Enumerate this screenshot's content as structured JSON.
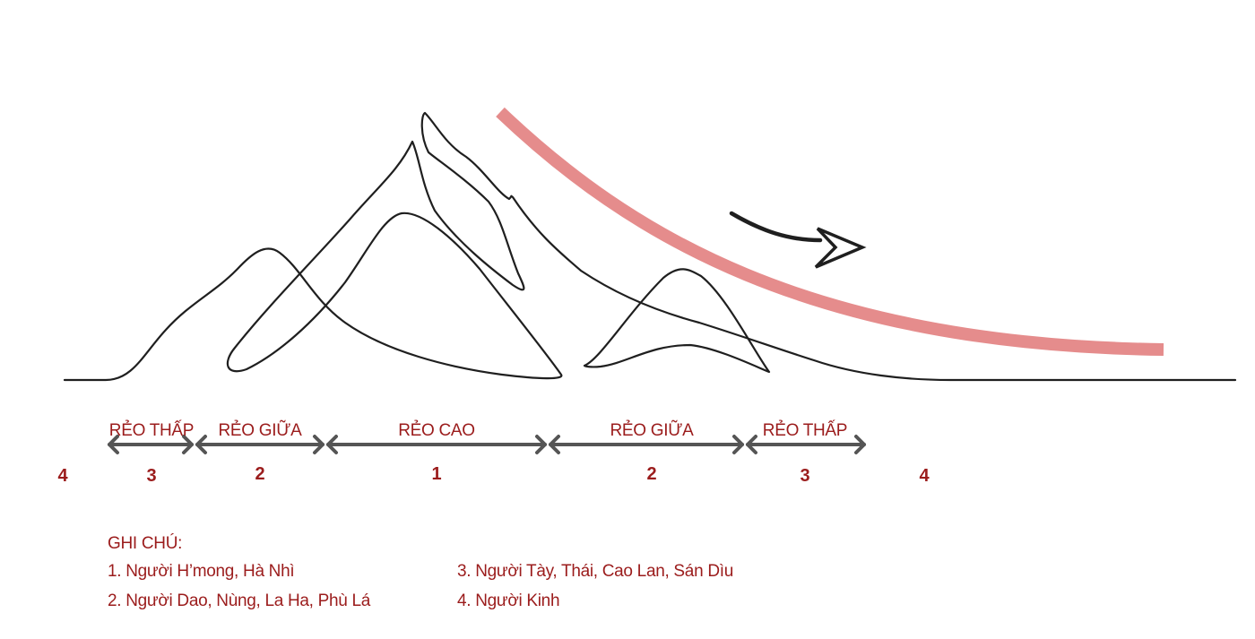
{
  "zones": [
    {
      "label": "RẺO THẤP",
      "number": "3"
    },
    {
      "label": "RẺO GIỮA",
      "number": "2"
    },
    {
      "label": "RẺO CAO",
      "number": "1"
    },
    {
      "label": "RẺO GIỮA",
      "number": "2"
    },
    {
      "label": "RẺO THẤP",
      "number": "3"
    }
  ],
  "outer_numbers": [
    "4",
    "4"
  ],
  "legend": {
    "title": "GHI CHÚ:",
    "items": [
      "1. Người H’mong, Hà Nhì",
      "2. Người Dao, Nùng, La Ha, Phù Lá",
      "3. Người Tày, Thái, Cao Lan, Sán Dìu",
      "4. Người Kinh"
    ]
  },
  "colors": {
    "label_red": "#9b1c1c",
    "line": "#1f1f1f",
    "arrow_gray": "#555555",
    "curve_pink": "#e58c8c"
  }
}
